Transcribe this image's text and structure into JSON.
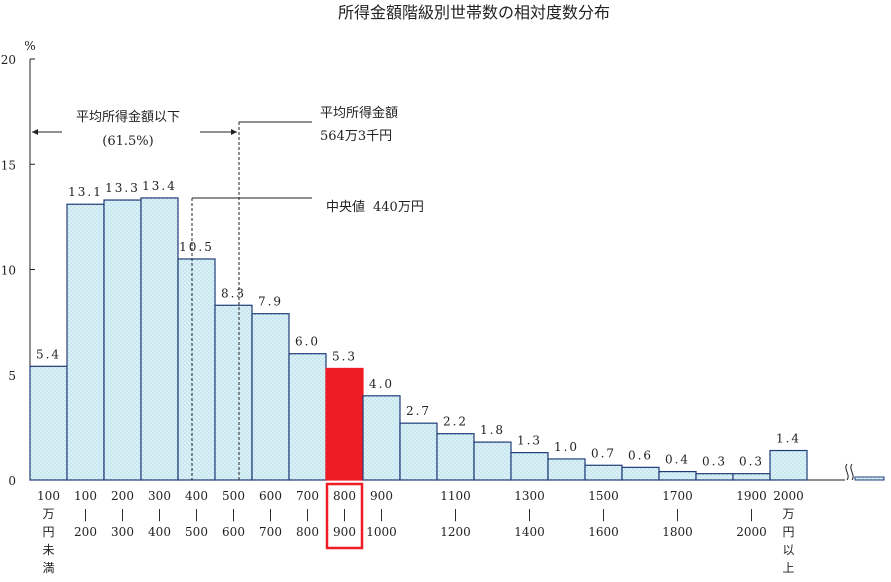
{
  "chart_data": {
    "type": "bar",
    "title": "所得金額階級別世帯数の相対度数分布",
    "ylabel": "%",
    "ylim": [
      0,
      20
    ],
    "yticks": [
      "0",
      "5",
      "10",
      "15",
      "20"
    ],
    "categories": [
      [
        "100",
        "万",
        "円",
        "未",
        "満"
      ],
      [
        "100",
        "|",
        "200"
      ],
      [
        "200",
        "|",
        "300"
      ],
      [
        "300",
        "|",
        "400"
      ],
      [
        "400",
        "|",
        "500"
      ],
      [
        "500",
        "|",
        "600"
      ],
      [
        "600",
        "|",
        "700"
      ],
      [
        "700",
        "|",
        "800"
      ],
      [
        "800",
        "|",
        "900"
      ],
      [
        "900",
        "|",
        "1000"
      ],
      [
        "",
        "",
        ""
      ],
      [
        "1100",
        "|",
        "1200"
      ],
      [
        "",
        "",
        ""
      ],
      [
        "1300",
        "|",
        "1400"
      ],
      [
        "",
        "",
        ""
      ],
      [
        "1500",
        "|",
        "1600"
      ],
      [
        "",
        "",
        ""
      ],
      [
        "1700",
        "|",
        "1800"
      ],
      [
        "",
        "",
        ""
      ],
      [
        "1900",
        "|",
        "2000"
      ],
      [
        "2000",
        "万",
        "円",
        "以",
        "上"
      ]
    ],
    "values": [
      5.4,
      13.1,
      13.3,
      13.4,
      10.5,
      8.3,
      7.9,
      6.0,
      5.3,
      4.0,
      2.7,
      2.2,
      1.8,
      1.3,
      1.0,
      0.7,
      0.6,
      0.4,
      0.3,
      0.3,
      1.4
    ],
    "value_labels": [
      "5.4",
      "13.1",
      "13.3",
      "13.4",
      "10.5",
      "8.3",
      "7.9",
      "6.0",
      "5.3",
      "4.0",
      "2.7",
      "2.2",
      "1.8",
      "1.3",
      "1.0",
      "0.7",
      "0.6",
      "0.4",
      "0.3",
      "0.3",
      "1.4"
    ],
    "highlight_index": 8,
    "colors": {
      "bar_fill": "#d9f1f8",
      "bar_dots": "#8fb9c8",
      "bar_stroke": "#1f3c78",
      "highlight": "#ee1c25"
    },
    "annotations": {
      "below_mean_label": "平均所得金額以下",
      "below_mean_pct": "(61.5%)",
      "mean_label": "平均所得金額",
      "mean_value": "564万3千円",
      "median_label": "中央値",
      "median_value": "440万円"
    }
  }
}
